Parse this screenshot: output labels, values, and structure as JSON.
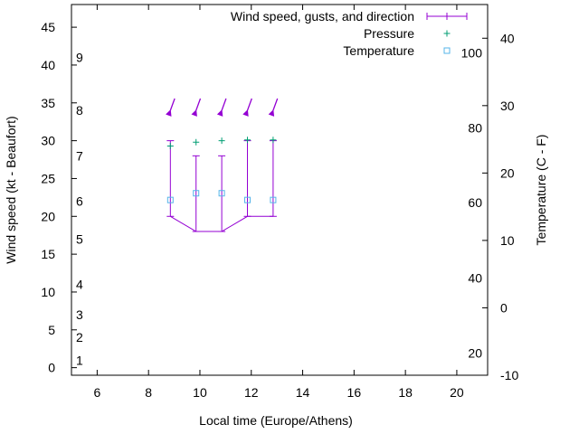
{
  "chart_data": {
    "type": "line",
    "xlabel": "Local time (Europe/Athens)",
    "ylabel": "Wind speed (kt - Beaufort)",
    "y2label": "Temperature (C - F)",
    "xlim": [
      5,
      21.2
    ],
    "ylim": [
      -1,
      48
    ],
    "y2lim": [
      -10,
      45
    ],
    "x_ticks": [
      "6",
      "8",
      "10",
      "12",
      "14",
      "16",
      "18",
      "20"
    ],
    "y_ticks": [
      "0",
      "5",
      "10",
      "15",
      "20",
      "25",
      "30",
      "35",
      "40",
      "45"
    ],
    "y2_ticks": [
      "-10",
      "0",
      "10",
      "20",
      "30",
      "40"
    ],
    "beaufort_labels": [
      {
        "text": "1",
        "y": 1.0
      },
      {
        "text": "2",
        "y": 4.0
      },
      {
        "text": "3",
        "y": 7.0
      },
      {
        "text": "4",
        "y": 11.0
      },
      {
        "text": "5",
        "y": 17.0
      },
      {
        "text": "6",
        "y": 22.0
      },
      {
        "text": "7",
        "y": 28.0
      },
      {
        "text": "8",
        "y": 34.0
      },
      {
        "text": "9",
        "y": 41.0
      }
    ],
    "fahrenheit_labels": [
      {
        "text": "20",
        "temp_c": -6.7
      },
      {
        "text": "40",
        "temp_c": 4.4
      },
      {
        "text": "60",
        "temp_c": 15.6
      },
      {
        "text": "80",
        "temp_c": 26.7
      },
      {
        "text": "100",
        "temp_c": 37.8
      }
    ],
    "legend": {
      "placement": "top-right",
      "entries": [
        {
          "label": "Wind speed, gusts, and direction",
          "color": "#9400d3",
          "marker": "line-with-ticks"
        },
        {
          "label": "Pressure",
          "color": "#009e73",
          "marker": "plus"
        },
        {
          "label": "Temperature",
          "color": "#56b4e9",
          "marker": "open-square"
        }
      ]
    },
    "series": [
      {
        "name": "Wind speed, gusts, and direction",
        "color": "#9400d3",
        "x": [
          8.85,
          9.85,
          10.85,
          11.85,
          12.85
        ],
        "speed": [
          20,
          18,
          18,
          20,
          20
        ],
        "gust": [
          30,
          28,
          28,
          30,
          30
        ],
        "direction_deg": [
          20,
          20,
          20,
          20,
          20
        ]
      },
      {
        "name": "Pressure",
        "color": "#009e73",
        "x": [
          8.85,
          9.85,
          10.85,
          11.85,
          12.85
        ],
        "y": [
          29.3,
          29.8,
          30.0,
          30.1,
          30.1
        ]
      },
      {
        "name": "Temperature",
        "color": "#56b4e9",
        "x": [
          8.85,
          9.85,
          10.85,
          11.85,
          12.85
        ],
        "temp_c": [
          16,
          17,
          17,
          16,
          16
        ]
      }
    ]
  }
}
